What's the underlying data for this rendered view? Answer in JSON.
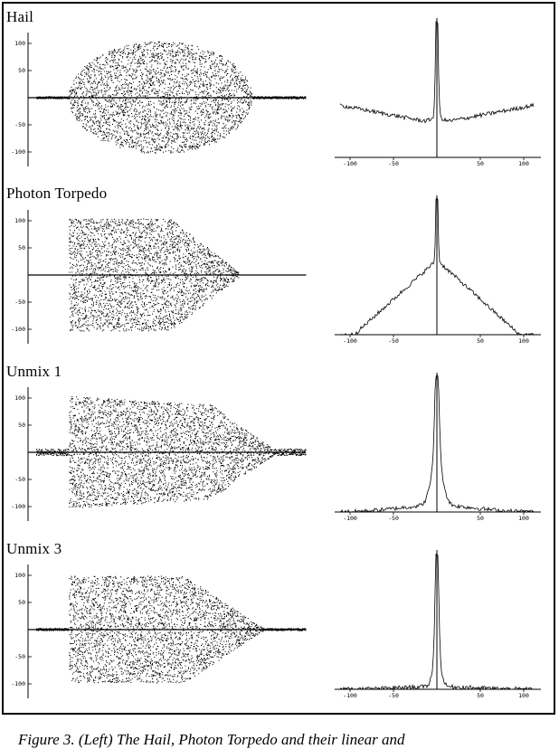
{
  "panels": [
    {
      "title": "Hail",
      "envelope": "oval",
      "waveform_yticks": [
        "100",
        "50",
        "-50",
        "-100"
      ],
      "histogram_xticks": [
        "-100",
        "-50",
        "50",
        "100"
      ],
      "histogram_shape": "broad"
    },
    {
      "title": "Photon Torpedo",
      "envelope": "taper",
      "waveform_yticks": [
        "100",
        "50",
        "-50",
        "-100"
      ],
      "histogram_xticks": [
        "-100",
        "-50",
        "50",
        "100"
      ],
      "histogram_shape": "triangle"
    },
    {
      "title": "Unmix 1",
      "envelope": "unmix1",
      "waveform_yticks": [
        "100",
        "50",
        "-50",
        "-100"
      ],
      "histogram_xticks": [
        "-100",
        "-50",
        "50",
        "100"
      ],
      "histogram_shape": "narrow"
    },
    {
      "title": "Unmix 3",
      "envelope": "unmix3",
      "waveform_yticks": [
        "100",
        "50",
        "-50",
        "-100"
      ],
      "histogram_xticks": [
        "-100",
        "-50",
        "50",
        "100"
      ],
      "histogram_shape": "narrowest"
    }
  ],
  "caption": "Figure 3. (Left) The Hail, Photon Torpedo and their linear and"
}
